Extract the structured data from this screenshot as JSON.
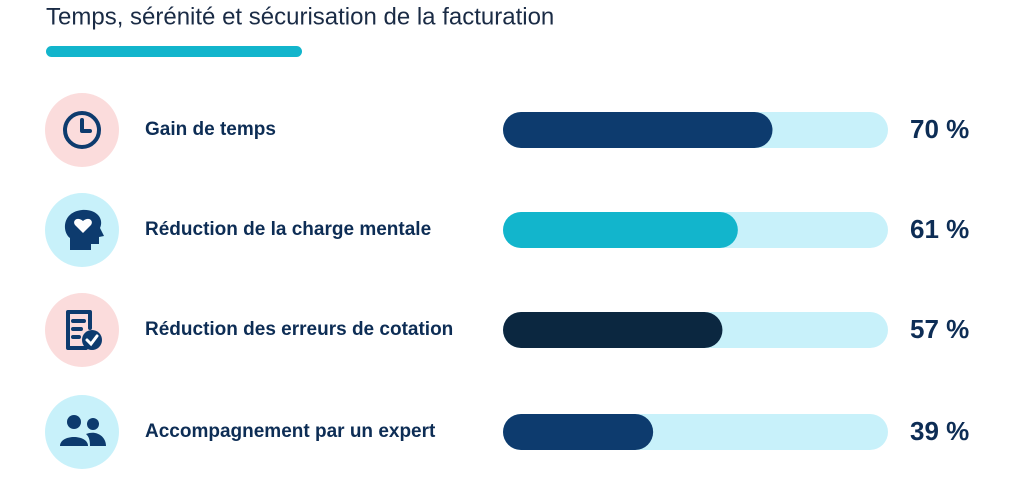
{
  "chart_data": {
    "type": "bar",
    "title": "Temps, sérénité et sécurisation de la facturation",
    "categories": [
      "Gain de temps",
      "Réduction de la charge mentale",
      "Réduction des erreurs de cotation",
      "Accompagnement par un expert"
    ],
    "values": [
      70,
      61,
      57,
      39
    ],
    "value_labels": [
      "70 %",
      "61 %",
      "57 %",
      "39 %"
    ],
    "colors": [
      "#0d3b6e",
      "#12b5cc",
      "#0b2740",
      "#0d3b6e"
    ],
    "track_color": "#c8f1fa",
    "xlim": [
      0,
      100
    ]
  }
}
